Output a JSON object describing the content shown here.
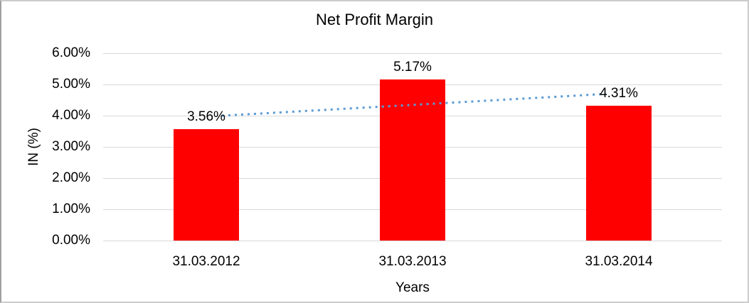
{
  "chart_data": {
    "type": "bar",
    "title": "Net Profit Margin",
    "categories": [
      "31.03.2012",
      "31.03.2013",
      "31.03.2014"
    ],
    "values": [
      3.56,
      5.17,
      4.31
    ],
    "data_labels": [
      "3.56%",
      "5.17%",
      "4.31%"
    ],
    "xlabel": "Years",
    "ylabel": "IN (%)",
    "ylim": [
      0,
      6
    ],
    "ytick_step": 1,
    "ytick_labels": [
      "0.00%",
      "1.00%",
      "2.00%",
      "3.00%",
      "4.00%",
      "5.00%",
      "6.00%"
    ],
    "grid": true,
    "legend_position": "none",
    "bar_color": "#FF0000",
    "gridline_color": "#D9D9D9",
    "text_color": "#000000",
    "background_color": "#FFFFFF",
    "trendline": {
      "type": "linear",
      "style": "dotted",
      "color": "#5B9BD5",
      "from_value": 3.97,
      "to_value": 4.72
    }
  }
}
